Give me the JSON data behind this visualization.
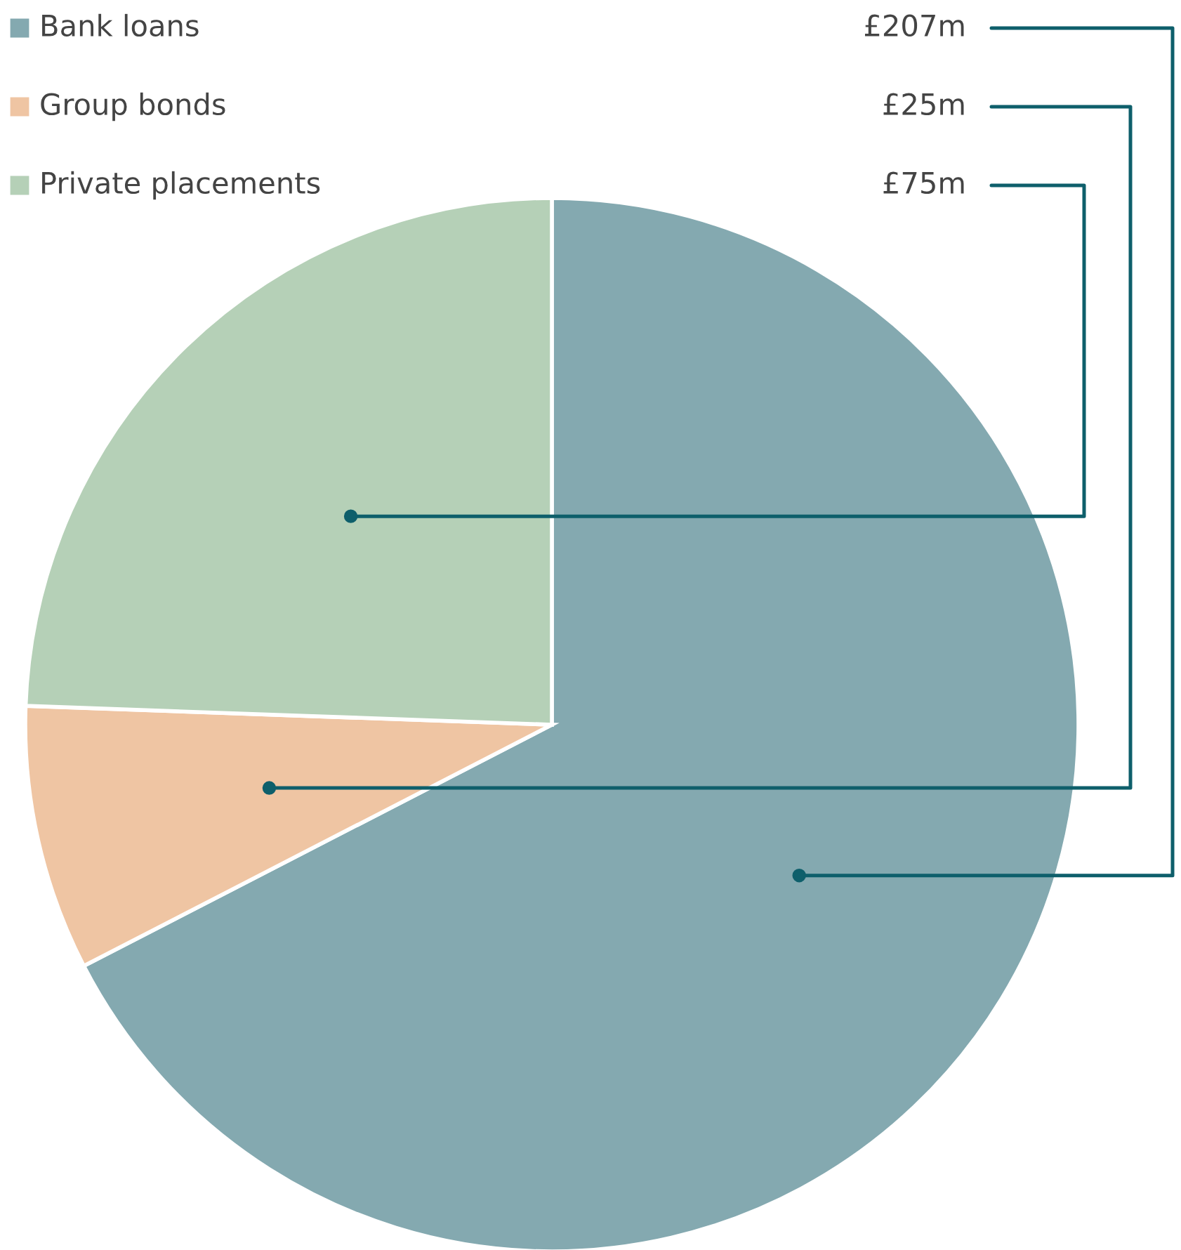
{
  "chart_data": {
    "type": "pie",
    "categories": [
      "Bank loans",
      "Group bonds",
      "Private placements"
    ],
    "values": [
      207,
      25,
      75
    ],
    "value_labels": [
      "£207m",
      "£25m",
      "£75m"
    ],
    "colors": [
      "#84a9b0",
      "#efc5a3",
      "#b5d0b7"
    ],
    "legend": "top left"
  }
}
